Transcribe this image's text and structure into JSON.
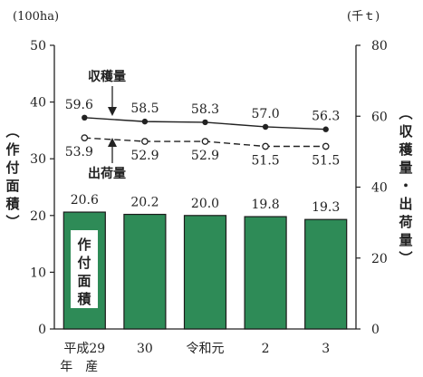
{
  "chart_data": {
    "type": "bar",
    "categories": [
      "平成29",
      "30",
      "令和元",
      "2",
      "3"
    ],
    "category_sublabels": [
      "年　産",
      "",
      "",
      "",
      ""
    ],
    "y_left": {
      "unit": "(100ha)",
      "title": "作付面積",
      "lim": [
        0,
        50
      ],
      "ticks": [
        "0",
        "10",
        "20",
        "30",
        "40",
        "50"
      ]
    },
    "y_right": {
      "unit": "(千ｔ)",
      "title": "収穫量・出荷量",
      "lim": [
        0,
        80
      ],
      "ticks": [
        "0",
        "20",
        "40",
        "60",
        "80"
      ]
    },
    "series": [
      {
        "name": "作付面積",
        "type": "bar",
        "axis": "left",
        "color": "#2e8b57",
        "values": [
          20.6,
          20.2,
          20.0,
          19.8,
          19.3
        ],
        "labels": [
          "20.6",
          "20.2",
          "20.0",
          "19.8",
          "19.3"
        ]
      },
      {
        "name": "収穫量",
        "type": "line",
        "axis": "right",
        "style": "solid",
        "marker": "filled",
        "values": [
          59.6,
          58.5,
          58.3,
          57.0,
          56.3
        ],
        "labels": [
          "59.6",
          "58.5",
          "58.3",
          "57.0",
          "56.3"
        ]
      },
      {
        "name": "出荷量",
        "type": "line",
        "axis": "right",
        "style": "dashed",
        "marker": "open",
        "values": [
          53.9,
          52.9,
          52.9,
          51.5,
          51.5
        ],
        "labels": [
          "53.9",
          "52.9",
          "52.9",
          "51.5",
          "51.5"
        ]
      }
    ],
    "grid": false
  }
}
